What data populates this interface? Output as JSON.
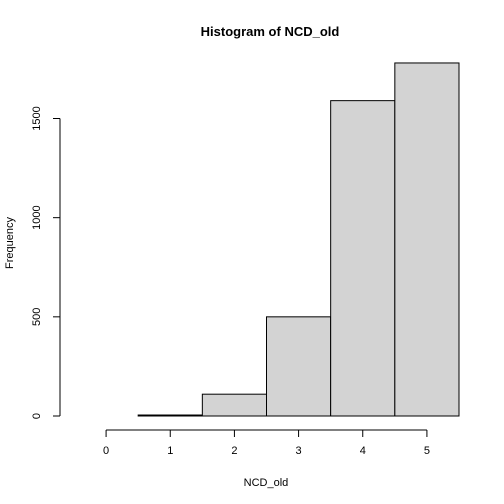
{
  "chart_data": {
    "type": "bar",
    "title": "Histogram of NCD_old",
    "xlabel": "NCD_old",
    "ylabel": "Frequency",
    "bin_edges": [
      -0.5,
      0.5,
      1.5,
      2.5,
      3.5,
      4.5,
      5.5
    ],
    "values": [
      0,
      5,
      110,
      500,
      1590,
      1780
    ],
    "x_ticks": [
      0,
      1,
      2,
      3,
      4,
      5
    ],
    "y_ticks": [
      0,
      500,
      1000,
      1500
    ],
    "xlim": [
      -0.5,
      5.5
    ],
    "ylim": [
      0,
      1800
    ],
    "grid": false,
    "legend": "none"
  }
}
